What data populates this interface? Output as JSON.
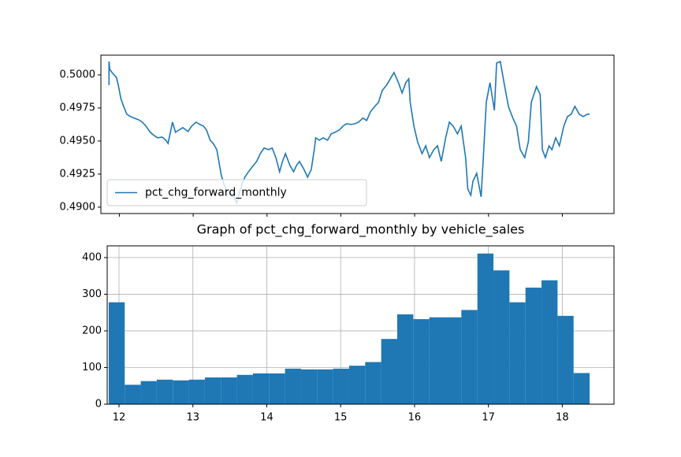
{
  "chart_data": [
    {
      "type": "line",
      "x": [
        11.86,
        11.86,
        11.87,
        11.9,
        11.96,
        11.99,
        12.02,
        12.05,
        12.1,
        12.15,
        12.2,
        12.26,
        12.31,
        12.36,
        12.42,
        12.47,
        12.52,
        12.58,
        12.63,
        12.66,
        12.72,
        12.76,
        12.81,
        12.86,
        12.93,
        12.98,
        13.04,
        13.09,
        13.14,
        13.18,
        13.23,
        13.27,
        13.32,
        13.38,
        13.42,
        13.48,
        13.55,
        13.59,
        13.64,
        13.7,
        13.75,
        13.8,
        13.86,
        13.91,
        13.96,
        14.02,
        14.07,
        14.12,
        14.17,
        14.21,
        14.25,
        14.31,
        14.36,
        14.4,
        14.44,
        14.5,
        14.55,
        14.6,
        14.64,
        14.66,
        14.71,
        14.76,
        14.82,
        14.87,
        14.92,
        14.98,
        15.03,
        15.08,
        15.14,
        15.19,
        15.24,
        15.3,
        15.35,
        15.4,
        15.46,
        15.51,
        15.56,
        15.62,
        15.67,
        15.72,
        15.78,
        15.83,
        15.88,
        15.92,
        15.94,
        15.99,
        16.04,
        16.1,
        16.15,
        16.2,
        16.26,
        16.31,
        16.36,
        16.42,
        16.47,
        16.52,
        16.58,
        16.63,
        16.69,
        16.72,
        16.76,
        16.79,
        16.84,
        16.9,
        16.93,
        16.97,
        17.02,
        17.08,
        17.11,
        17.16,
        17.22,
        17.27,
        17.33,
        17.38,
        17.43,
        17.49,
        17.54,
        17.58,
        17.65,
        17.7,
        17.73,
        17.77,
        17.82,
        17.86,
        17.91,
        17.96,
        18.02,
        18.07,
        18.12,
        18.17,
        18.23,
        18.28,
        18.34,
        18.37
      ],
      "series": [
        {
          "name": "pct_chg_forward_monthly",
          "color": "#1f77b4",
          "values": [
            0.49923,
            0.50101,
            0.50042,
            0.50018,
            0.49982,
            0.49911,
            0.49822,
            0.49774,
            0.49703,
            0.49685,
            0.49673,
            0.49661,
            0.49643,
            0.49613,
            0.49566,
            0.49542,
            0.49524,
            0.4953,
            0.49506,
            0.49482,
            0.49643,
            0.49566,
            0.49584,
            0.49601,
            0.49572,
            0.49613,
            0.49643,
            0.49625,
            0.49613,
            0.49584,
            0.49506,
            0.49482,
            0.49435,
            0.49244,
            0.49167,
            0.49108,
            0.49078,
            0.4903,
            0.49137,
            0.49227,
            0.49268,
            0.49304,
            0.49346,
            0.49405,
            0.49447,
            0.49435,
            0.49447,
            0.49375,
            0.49268,
            0.49346,
            0.49405,
            0.49316,
            0.49268,
            0.49316,
            0.49346,
            0.49286,
            0.49227,
            0.49286,
            0.49435,
            0.49524,
            0.49506,
            0.49524,
            0.49506,
            0.49554,
            0.49566,
            0.49584,
            0.49613,
            0.49631,
            0.49625,
            0.49631,
            0.49643,
            0.49673,
            0.49655,
            0.4972,
            0.49762,
            0.49792,
            0.49881,
            0.49923,
            0.4997,
            0.50018,
            0.49941,
            0.49863,
            0.49941,
            0.4997,
            0.49792,
            0.49613,
            0.49494,
            0.49405,
            0.49464,
            0.49375,
            0.49435,
            0.49464,
            0.49346,
            0.49524,
            0.49643,
            0.49613,
            0.49554,
            0.49613,
            0.49375,
            0.49137,
            0.4909,
            0.49197,
            0.49256,
            0.49078,
            0.49375,
            0.49792,
            0.49941,
            0.49732,
            0.50089,
            0.50101,
            0.49911,
            0.49762,
            0.49673,
            0.49613,
            0.49435,
            0.49375,
            0.49494,
            0.49792,
            0.49911,
            0.49851,
            0.49435,
            0.49375,
            0.49464,
            0.49435,
            0.49524,
            0.49464,
            0.49613,
            0.49685,
            0.49703,
            0.49762,
            0.49703,
            0.49685,
            0.49703,
            0.49703
          ]
        }
      ],
      "xlim": [
        11.75,
        18.7
      ],
      "xticks": [
        12,
        13,
        14,
        15,
        16,
        17,
        18
      ],
      "ylim": [
        0.48952,
        0.50149
      ],
      "yticks": [
        {
          "value": 0.49,
          "label": "0.4900"
        },
        {
          "value": 0.4925,
          "label": "0.4925"
        },
        {
          "value": 0.495,
          "label": "0.4950"
        },
        {
          "value": 0.4975,
          "label": "0.4975"
        },
        {
          "value": 0.5,
          "label": "0.5000"
        }
      ],
      "legend": "lower left"
    },
    {
      "type": "histogram",
      "title": "Graph of pct_chg_forward_monthly by vehicle_sales",
      "bins": [
        11.86,
        12.077,
        12.294,
        12.511,
        12.728,
        12.945,
        13.162,
        13.379,
        13.596,
        13.813,
        14.03,
        14.247,
        14.464,
        14.681,
        14.898,
        15.115,
        15.332,
        15.549,
        15.766,
        15.983,
        16.2,
        16.417,
        16.634,
        16.851,
        17.068,
        17.285,
        17.502,
        17.719,
        17.936,
        18.153,
        18.37
      ],
      "values": [
        278,
        53,
        63,
        67,
        65,
        67,
        73,
        73,
        80,
        84,
        84,
        97,
        95,
        95,
        97,
        105,
        115,
        178,
        245,
        232,
        237,
        237,
        257,
        411,
        365,
        278,
        318,
        338,
        241,
        85
      ],
      "color": "#1f77b4",
      "xlim": [
        11.84,
        18.7
      ],
      "xticks": [
        12,
        13,
        14,
        15,
        16,
        17,
        18
      ],
      "ylim": [
        0,
        432
      ],
      "yticks": [
        0,
        100,
        200,
        300,
        400
      ],
      "grid": true
    }
  ]
}
